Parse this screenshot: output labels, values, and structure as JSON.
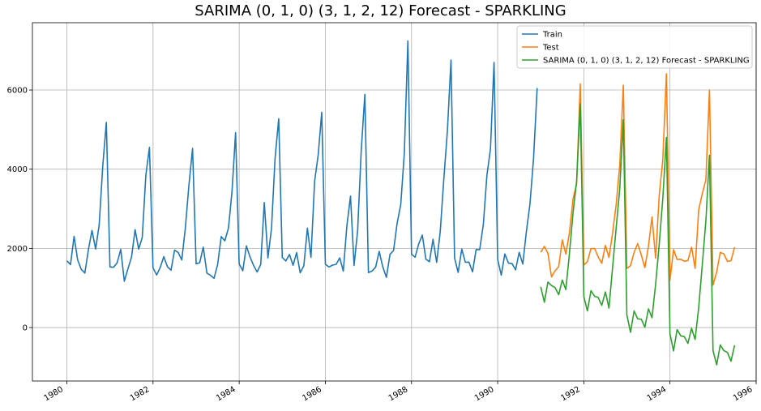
{
  "chart_data": {
    "type": "line",
    "title": "SARIMA (0, 1, 0) (3, 1, 2, 12) Forecast - SPARKLING",
    "xlabel": "",
    "ylabel": "",
    "xlim": [
      1979.2,
      1996.0
    ],
    "ylim": [
      -1350,
      7700
    ],
    "x_ticks": [
      1980,
      1982,
      1984,
      1986,
      1988,
      1990,
      1992,
      1994,
      1996
    ],
    "x_tick_labels": [
      "1980",
      "1982",
      "1984",
      "1986",
      "1988",
      "1990",
      "1992",
      "1994",
      "1996"
    ],
    "y_ticks": [
      0,
      2000,
      4000,
      6000
    ],
    "y_tick_labels": [
      "0",
      "2000",
      "4000",
      "6000"
    ],
    "grid": true,
    "legend_position": "top-right",
    "series": [
      {
        "name": "Train",
        "color": "#1f77b4",
        "start": 1980.0,
        "step": 0.0833333,
        "values": [
          1686,
          1591,
          2304,
          1712,
          1471,
          1377,
          1966,
          2453,
          1984,
          2596,
          4087,
          5179,
          1530,
          1523,
          1633,
          1976,
          1170,
          1480,
          1781,
          2472,
          1981,
          2273,
          3857,
          4551,
          1510,
          1329,
          1518,
          1790,
          1537,
          1449,
          1954,
          1897,
          1706,
          2514,
          3593,
          4524,
          1609,
          1638,
          2030,
          1375,
          1320,
          1245,
          1600,
          2298,
          2191,
          2511,
          3440,
          4923,
          1609,
          1435,
          2061,
          1789,
          1567,
          1404,
          1597,
          3159,
          1759,
          2504,
          4273,
          5274,
          1771,
          1682,
          1846,
          1571,
          1891,
          1384,
          1560,
          2512,
          1772,
          3694,
          4357,
          5437,
          1598,
          1528,
          1578,
          1597,
          1760,
          1427,
          2567,
          3321,
          1569,
          2452,
          4464,
          5890,
          1390,
          1426,
          1525,
          1923,
          1532,
          1268,
          1849,
          1946,
          2632,
          3108,
          4404,
          7242,
          1853,
          1779,
          2108,
          2336,
          1728,
          1661,
          2230,
          1645,
          2421,
          3740,
          4988,
          6757,
          1757,
          1394,
          1982,
          1650,
          1654,
          1406,
          1971,
          1968,
          2608,
          3845,
          4514,
          6694,
          1720,
          1321,
          1859,
          1628,
          1615,
          1457,
          1899,
          1605,
          2424,
          3116,
          4286,
          6047
        ]
      },
      {
        "name": "Test",
        "color": "#ff7f0e",
        "start": 1991.0,
        "step": 0.0833333,
        "values": [
          1902,
          2049,
          1874,
          1279,
          1432,
          1540,
          2214,
          1857,
          2408,
          3252,
          3627,
          6153,
          1577,
          1667,
          1993,
          1997,
          1783,
          1625,
          2076,
          1773,
          2377,
          3088,
          4096,
          6119,
          1494,
          1564,
          1898,
          2121,
          1831,
          1515,
          2048,
          2795,
          1749,
          3339,
          4227,
          6410,
          1197,
          1968,
          1720,
          1725,
          1674,
          1693,
          2031,
          1495,
          2968,
          3385,
          3729,
          5999,
          1070,
          1402,
          1897,
          1862,
          1670,
          1688,
          2031
        ]
      },
      {
        "name": "SARIMA (0, 1, 0) (3, 1, 2, 12) Forecast - SPARKLING",
        "color": "#2ca02c",
        "start": 1991.0,
        "step": 0.0833333,
        "values": [
          1030,
          640,
          1150,
          1060,
          1010,
          830,
          1200,
          960,
          1880,
          2900,
          3700,
          5650,
          780,
          420,
          930,
          790,
          760,
          560,
          900,
          490,
          1500,
          2500,
          3500,
          5250,
          320,
          -120,
          420,
          220,
          210,
          10,
          470,
          250,
          1100,
          2100,
          3250,
          4800,
          -160,
          -590,
          -50,
          -210,
          -230,
          -400,
          -20,
          -300,
          500,
          1600,
          2700,
          4350,
          -580,
          -940,
          -440,
          -580,
          -630,
          -850,
          -450
        ]
      }
    ]
  }
}
